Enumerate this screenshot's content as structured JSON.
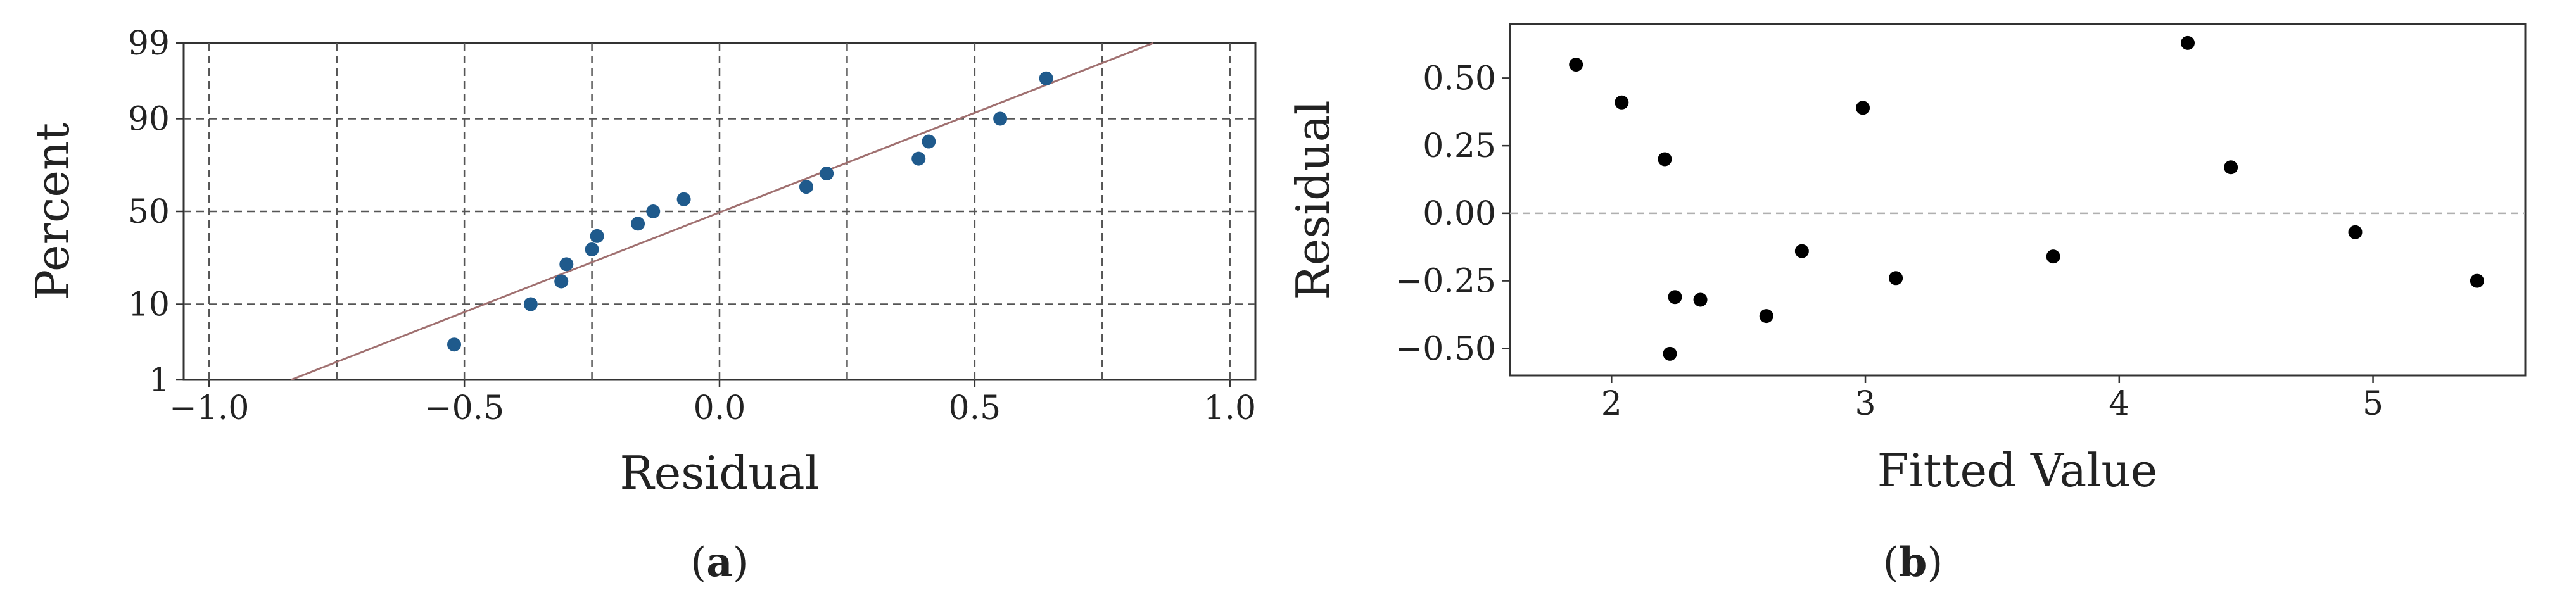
{
  "colors": {
    "probability_points": "#1f5a8c",
    "reference_line": "#a07070",
    "residual_points": "#000000",
    "grid": "#555555",
    "zero_line": "#b0b0b0",
    "frame": "#333333"
  },
  "chart_data": [
    {
      "type": "scatter",
      "xlabel": "Residual",
      "ylabel": "Percent",
      "xlim": [
        -1.05,
        1.05
      ],
      "ylim": [
        1,
        99
      ],
      "y_scale": "probability",
      "x_ticks": [
        -1.0,
        -0.5,
        0.0,
        0.5,
        1.0
      ],
      "x_tick_labels": [
        "−1.0",
        "−0.5",
        "0.0",
        "0.5",
        "1.0"
      ],
      "x_grid": [
        -1.0,
        -0.75,
        -0.5,
        -0.25,
        0.0,
        0.25,
        0.5,
        0.75,
        1.0
      ],
      "y_ticks": [
        1,
        10,
        50,
        90,
        99
      ],
      "y_tick_labels": [
        "1",
        "10",
        "50",
        "90",
        "99"
      ],
      "grid": true,
      "caption": "a",
      "series": [
        {
          "kind": "points",
          "x": [
            -0.52,
            -0.37,
            -0.31,
            -0.3,
            -0.25,
            -0.24,
            -0.16,
            -0.13,
            -0.07,
            0.17,
            0.21,
            0.39,
            0.41,
            0.55,
            0.64
          ],
          "y": [
            3.3,
            10.0,
            16.7,
            23.3,
            30.0,
            36.7,
            43.3,
            50.0,
            56.7,
            63.3,
            70.0,
            76.7,
            83.3,
            90.0,
            96.7
          ]
        },
        {
          "kind": "reference-line",
          "x": [
            -0.84,
            0.85
          ],
          "y": [
            1,
            99
          ]
        }
      ]
    },
    {
      "type": "scatter",
      "xlabel": "Fitted Value",
      "ylabel": "Residual",
      "xlim": [
        1.6,
        5.6
      ],
      "ylim": [
        -0.6,
        0.7
      ],
      "x_ticks": [
        2,
        3,
        4,
        5
      ],
      "x_tick_labels": [
        "2",
        "3",
        "4",
        "5"
      ],
      "y_ticks": [
        -0.5,
        -0.25,
        0.0,
        0.25,
        0.5
      ],
      "y_tick_labels": [
        "−0.50",
        "−0.25",
        "0.00",
        "0.25",
        "0.50"
      ],
      "grid": false,
      "zero_line": 0.0,
      "caption": "b",
      "series": [
        {
          "kind": "points",
          "x": [
            1.86,
            2.04,
            2.21,
            2.23,
            2.25,
            2.35,
            2.61,
            2.75,
            2.99,
            3.12,
            3.74,
            4.27,
            4.44,
            4.93,
            5.41
          ],
          "y": [
            0.55,
            0.41,
            0.2,
            -0.52,
            -0.31,
            -0.32,
            -0.38,
            -0.14,
            0.39,
            -0.24,
            -0.16,
            0.63,
            0.17,
            -0.07,
            -0.25
          ]
        }
      ]
    }
  ]
}
